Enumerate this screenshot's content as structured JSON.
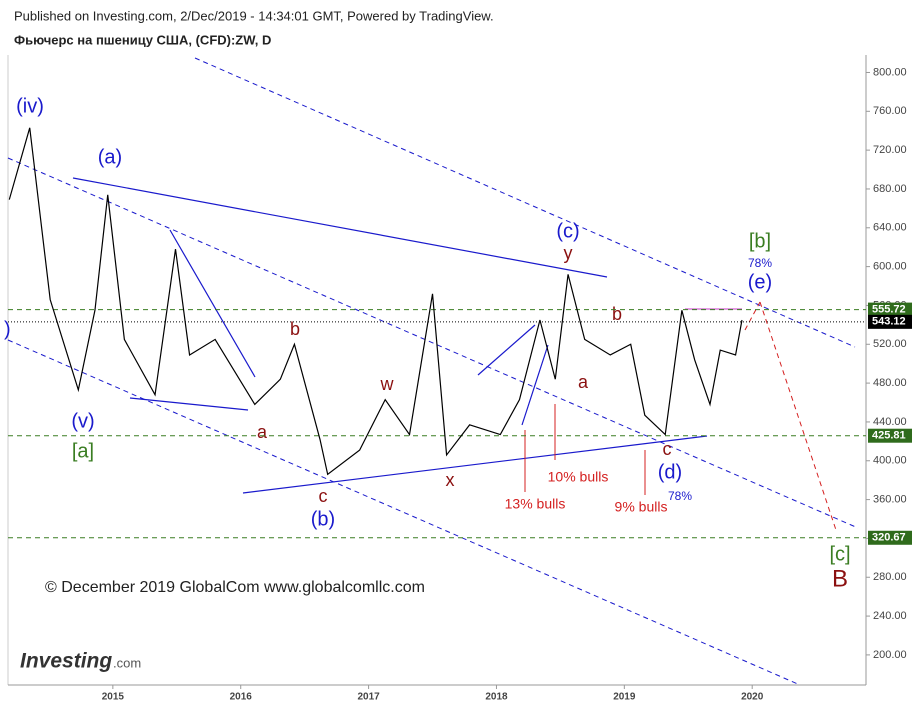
{
  "header": {
    "published": "Published on Investing.com, 2/Dec/2019 - 14:34:01 GMT, Powered by TradingView.",
    "title": "Фьючерс на пшеницу США, (CFD):ZW, D"
  },
  "watermark": "© December 2019 GlobalCom www.globalcomllc.com",
  "logo": {
    "main": "Investing",
    "suffix": ".com"
  },
  "annotations": [
    "(iv)",
    "(a)",
    "(v)",
    "[a]",
    "b",
    "a",
    "c",
    "(b)",
    "w",
    "x",
    "(c)",
    "y",
    "b",
    "a",
    "c",
    "(d)",
    "78%",
    "10% bulls",
    "13% bulls",
    "9% bulls",
    "[b]",
    "78%",
    "(e)",
    "[c]",
    "B",
    ")"
  ],
  "chart_data": {
    "type": "line",
    "x": [
      2014.19,
      2014.35,
      2014.51,
      2014.73,
      2014.86,
      2014.96,
      2015.09,
      2015.33,
      2015.49,
      2015.6,
      2015.8,
      2016.11,
      2016.31,
      2016.42,
      2016.62,
      2016.68,
      2016.93,
      2017.13,
      2017.32,
      2017.5,
      2017.61,
      2017.79,
      2018.03,
      2018.18,
      2018.34,
      2018.46,
      2018.56,
      2018.69,
      2018.89,
      2019.05,
      2019.16,
      2019.32,
      2019.45,
      2019.55,
      2019.67,
      2019.75,
      2019.87,
      2019.92
    ],
    "series": [
      {
        "name": "ZW",
        "color": "#000000",
        "values": [
          669,
          743,
          566,
          473,
          555,
          674,
          525,
          468,
          618,
          509,
          525,
          458,
          484,
          520,
          422,
          386,
          411,
          463,
          427,
          572,
          406,
          437,
          427,
          463,
          545,
          484,
          592,
          525,
          509,
          520,
          447,
          427,
          555,
          504,
          458,
          514,
          509,
          545
        ]
      }
    ],
    "xlim": [
      2014.18,
      2020.89
    ],
    "xticks": [
      2015,
      2016,
      2017,
      2018,
      2019,
      2020
    ],
    "ylim": [
      169,
      818
    ],
    "yticks": [
      200,
      240,
      280,
      320,
      360,
      400,
      440,
      480,
      520,
      560,
      600,
      640,
      680,
      720,
      760,
      800
    ],
    "price_levels": [
      {
        "value": 555.72,
        "color": "#3a7d22"
      },
      {
        "value": 543.12,
        "color": "#000000"
      },
      {
        "value": 425.81,
        "color": "#3a7d22"
      },
      {
        "value": 320.67,
        "color": "#3a7d22"
      }
    ]
  }
}
